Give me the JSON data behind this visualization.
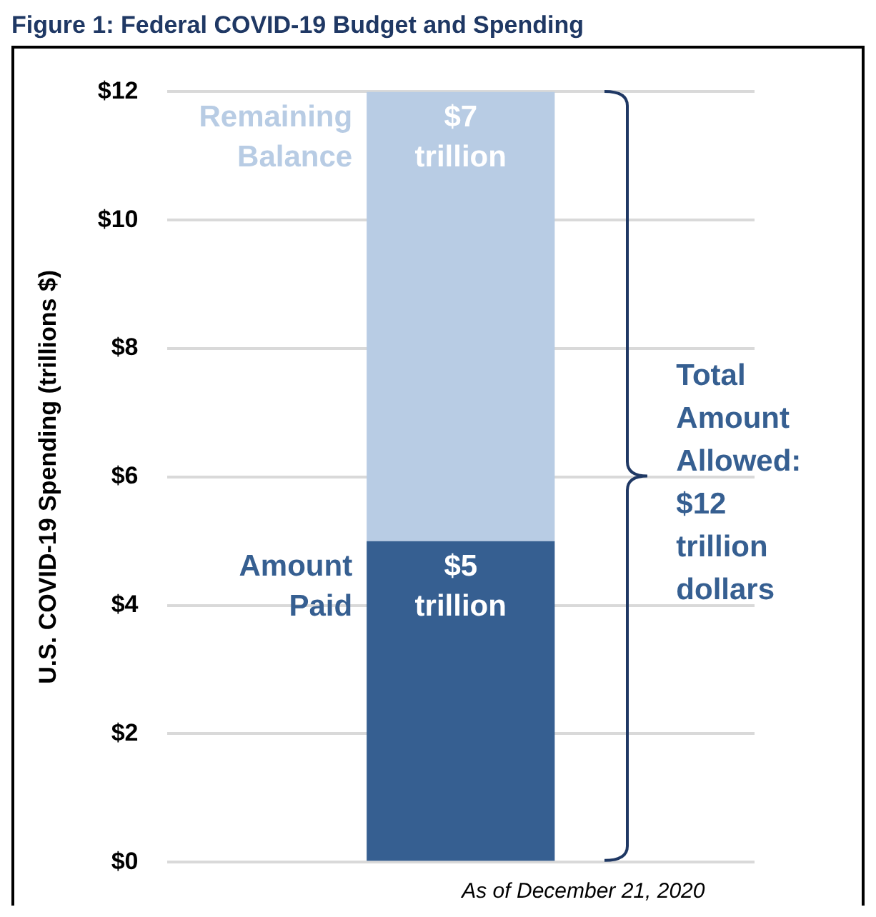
{
  "chart_data": {
    "type": "bar",
    "title": "Figure 1: Federal COVID-19 Budget and Spending",
    "ylabel": "U.S. COVID-19 Spending (trillions $)",
    "categories": [
      null
    ],
    "stacked": true,
    "series": [
      {
        "name": "Amount Paid",
        "color": "#365f91",
        "values": [
          5
        ],
        "value_labels": [
          "$5 trillion"
        ]
      },
      {
        "name": "Remaining Balance",
        "color": "#b8cce4",
        "values": [
          7
        ],
        "value_labels": [
          "$7 trillion"
        ]
      }
    ],
    "ylim": [
      0,
      12
    ],
    "yticks": [
      {
        "value": 0,
        "label": "$0"
      },
      {
        "value": 2,
        "label": "$2"
      },
      {
        "value": 4,
        "label": "$4"
      },
      {
        "value": 6,
        "label": "$6"
      },
      {
        "value": 8,
        "label": "$8"
      },
      {
        "value": 10,
        "label": "$10"
      },
      {
        "value": 12,
        "label": "$12"
      }
    ],
    "grid": "y",
    "legend": false,
    "annotations": [
      "Total Amount Allowed: $12 trillion dollars",
      "As of December 21, 2020"
    ]
  }
}
